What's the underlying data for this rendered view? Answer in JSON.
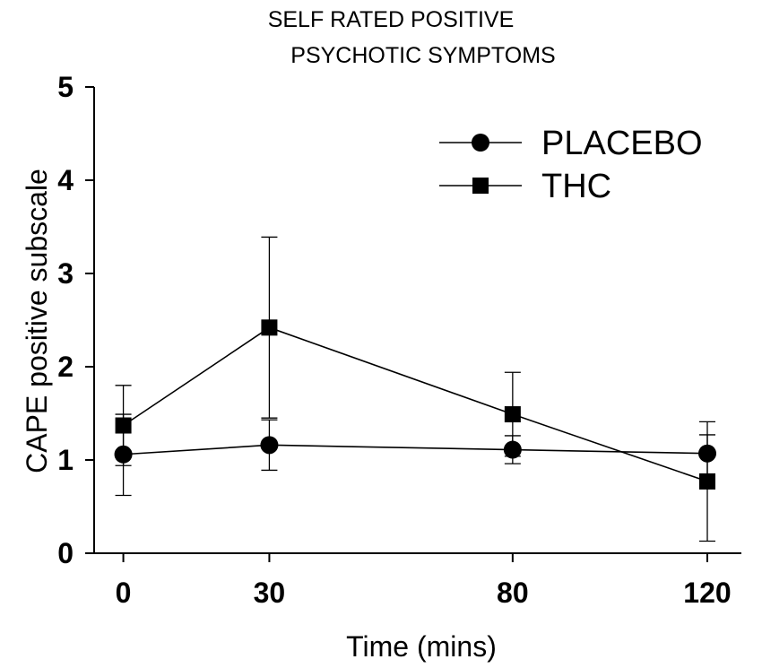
{
  "chart_data": {
    "type": "line",
    "title_line1": "SELF RATED POSITIVE",
    "title_line2": "PSYCHOTIC SYMPTOMS",
    "xlabel": "Time (mins)",
    "ylabel": "CAPE positive subscale",
    "x": [
      0,
      30,
      80,
      120
    ],
    "x_tick_labels": [
      "0",
      "30",
      "80",
      "120"
    ],
    "xlim": [
      -6,
      127
    ],
    "ylim": [
      0,
      5
    ],
    "y_ticks": [
      0,
      1,
      2,
      3,
      4,
      5
    ],
    "y_tick_labels": [
      "0",
      "1",
      "2",
      "3",
      "4",
      "5"
    ],
    "grid": false,
    "legend_position": "top-right",
    "series": [
      {
        "name": "PLACEBO",
        "marker": "circle",
        "values": [
          1.06,
          1.16,
          1.11,
          1.07
        ],
        "error_upper": [
          1.49,
          1.43,
          1.26,
          1.41
        ],
        "error_lower": [
          0.62,
          0.89,
          0.96,
          0.73
        ]
      },
      {
        "name": "THC",
        "marker": "square",
        "values": [
          1.37,
          2.42,
          1.49,
          0.77
        ],
        "error_upper": [
          1.8,
          3.39,
          1.94,
          1.27
        ],
        "error_lower": [
          0.94,
          1.45,
          1.04,
          0.13
        ]
      }
    ]
  }
}
